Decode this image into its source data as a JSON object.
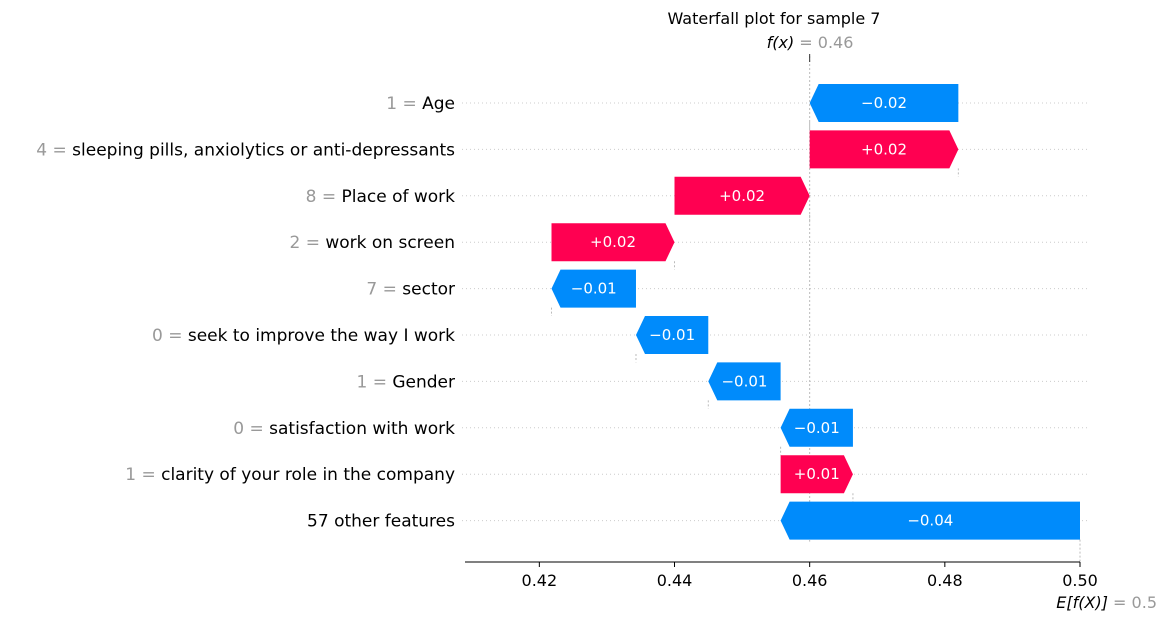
{
  "chart_data": {
    "type": "bar",
    "subtype": "shap-waterfall",
    "title": "Waterfall plot for sample 7",
    "fx_label": "f(x)",
    "fx_value": "0.46",
    "ex_label": "E[f(X)]",
    "ex_value": "0.5",
    "base_value": 0.5,
    "final_value": 0.46,
    "xlim": [
      0.409,
      0.5
    ],
    "xticks": [
      0.42,
      0.44,
      0.46,
      0.48,
      0.5
    ],
    "xtick_labels": [
      "0.42",
      "0.44",
      "0.46",
      "0.48",
      "0.50"
    ],
    "grid": false,
    "colors": {
      "positive": "#ff0051",
      "negative": "#008bfb",
      "muted_text": "#999999",
      "connector": "#bbbbbb",
      "gridline": "#cccccc"
    },
    "features": [
      {
        "value": "1",
        "name": "Age",
        "start": 0.482,
        "end": 0.46,
        "label": "−0.02",
        "sign": "negative"
      },
      {
        "value": "4",
        "name": "sleeping pills, anxiolytics or anti-depressants",
        "start": 0.46,
        "end": 0.482,
        "label": "+0.02",
        "sign": "positive"
      },
      {
        "value": "8",
        "name": "Place of work",
        "start": 0.44,
        "end": 0.46,
        "label": "+0.02",
        "sign": "positive"
      },
      {
        "value": "2",
        "name": "work on screen",
        "start": 0.4218,
        "end": 0.44,
        "label": "+0.02",
        "sign": "positive"
      },
      {
        "value": "7",
        "name": "sector",
        "start": 0.4343,
        "end": 0.4218,
        "label": "−0.01",
        "sign": "negative"
      },
      {
        "value": "0",
        "name": "seek to improve the way I work",
        "start": 0.445,
        "end": 0.4343,
        "label": "−0.01",
        "sign": "negative"
      },
      {
        "value": "1",
        "name": "Gender",
        "start": 0.4557,
        "end": 0.445,
        "label": "−0.01",
        "sign": "negative"
      },
      {
        "value": "0",
        "name": "satisfaction with work",
        "start": 0.4664,
        "end": 0.4557,
        "label": "−0.01",
        "sign": "negative"
      },
      {
        "value": "1",
        "name": "clarity of your role in the company",
        "start": 0.4557,
        "end": 0.4664,
        "label": "+0.01",
        "sign": "positive"
      },
      {
        "value": "",
        "name": "57 other features",
        "start": 0.5,
        "end": 0.4557,
        "label": "−0.04",
        "sign": "negative"
      }
    ]
  }
}
